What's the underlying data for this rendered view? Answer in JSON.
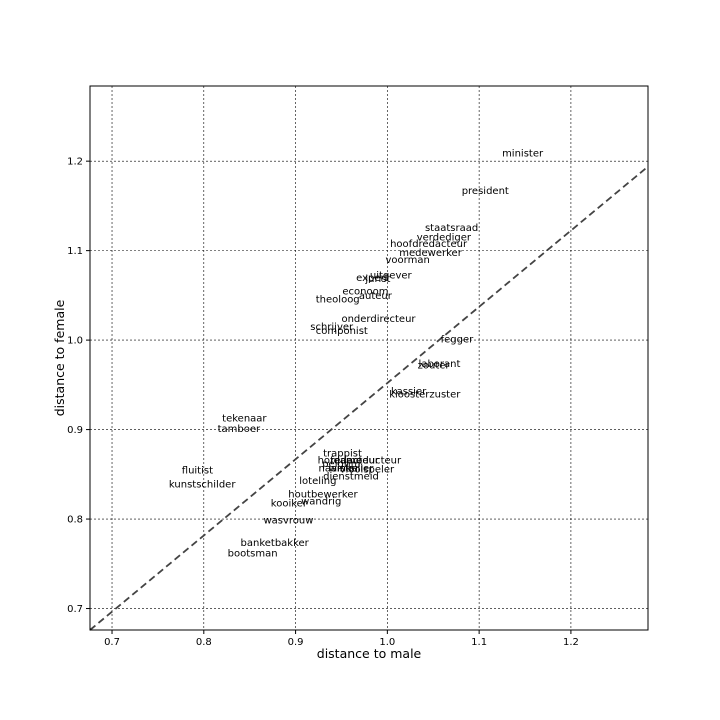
{
  "chart_data": {
    "type": "scatter",
    "title": "",
    "xlabel": "distance to male",
    "ylabel": "distance to female",
    "xlim": [
      0.676,
      1.284
    ],
    "ylim": [
      0.676,
      1.284
    ],
    "x_ticks": [
      "0.7",
      "0.8",
      "0.9",
      "1.0",
      "1.1",
      "1.2"
    ],
    "y_ticks": [
      "0.7",
      "0.8",
      "0.9",
      "1.0",
      "1.1",
      "1.2"
    ],
    "grid": true,
    "reference_line": {
      "style": "dashed",
      "from": [
        0.676,
        0.676
      ],
      "to": [
        1.284,
        1.194
      ]
    },
    "points": [
      {
        "label": "minister",
        "x": 1.125,
        "y": 1.209
      },
      {
        "label": "president",
        "x": 1.081,
        "y": 1.167
      },
      {
        "label": "staatsraad",
        "x": 1.041,
        "y": 1.126
      },
      {
        "label": "verdediger",
        "x": 1.032,
        "y": 1.115
      },
      {
        "label": "hoofdredacteur",
        "x": 1.003,
        "y": 1.108
      },
      {
        "label": "medewerker",
        "x": 1.013,
        "y": 1.098
      },
      {
        "label": "voorman",
        "x": 0.998,
        "y": 1.09
      },
      {
        "label": "uitgever",
        "x": 0.981,
        "y": 1.073
      },
      {
        "label": "expert",
        "x": 0.966,
        "y": 1.07
      },
      {
        "label": "jurist",
        "x": 0.976,
        "y": 1.069
      },
      {
        "label": "econoom",
        "x": 0.951,
        "y": 1.055
      },
      {
        "label": "auteur",
        "x": 0.969,
        "y": 1.05
      },
      {
        "label": "theoloog",
        "x": 0.922,
        "y": 1.046
      },
      {
        "label": "onderdirecteur",
        "x": 0.95,
        "y": 1.024
      },
      {
        "label": "schrijver",
        "x": 0.916,
        "y": 1.015
      },
      {
        "label": "componist",
        "x": 0.922,
        "y": 1.011
      },
      {
        "label": "fegger",
        "x": 1.058,
        "y": 1.001
      },
      {
        "label": "laborant",
        "x": 1.034,
        "y": 0.974
      },
      {
        "label": "zouter",
        "x": 1.033,
        "y": 0.972
      },
      {
        "label": "kassier",
        "x": 1.004,
        "y": 0.943
      },
      {
        "label": "kloosterzuster",
        "x": 1.002,
        "y": 0.94
      },
      {
        "label": "tekenaar",
        "x": 0.82,
        "y": 0.913
      },
      {
        "label": "tamboer",
        "x": 0.815,
        "y": 0.901
      },
      {
        "label": "trappist",
        "x": 0.93,
        "y": 0.874
      },
      {
        "label": "hofdame",
        "x": 0.924,
        "y": 0.866
      },
      {
        "label": "redacteur",
        "x": 0.938,
        "y": 0.866
      },
      {
        "label": "producteur",
        "x": 0.955,
        "y": 0.866
      },
      {
        "label": "pelgrim",
        "x": 0.929,
        "y": 0.862
      },
      {
        "label": "naaister",
        "x": 0.925,
        "y": 0.857
      },
      {
        "label": "winkelier",
        "x": 0.936,
        "y": 0.857
      },
      {
        "label": "vioolspeler",
        "x": 0.948,
        "y": 0.856
      },
      {
        "label": "dienstmeid",
        "x": 0.93,
        "y": 0.848
      },
      {
        "label": "loteling",
        "x": 0.904,
        "y": 0.843
      },
      {
        "label": "fluitist",
        "x": 0.776,
        "y": 0.855
      },
      {
        "label": "kunstschilder",
        "x": 0.762,
        "y": 0.839
      },
      {
        "label": "houtbewerker",
        "x": 0.892,
        "y": 0.828
      },
      {
        "label": "wandrig",
        "x": 0.906,
        "y": 0.82
      },
      {
        "label": "kooiker",
        "x": 0.873,
        "y": 0.818
      },
      {
        "label": "wasvrouw",
        "x": 0.865,
        "y": 0.799
      },
      {
        "label": "banketbakker",
        "x": 0.84,
        "y": 0.774
      },
      {
        "label": "bootsman",
        "x": 0.826,
        "y": 0.762
      }
    ]
  }
}
